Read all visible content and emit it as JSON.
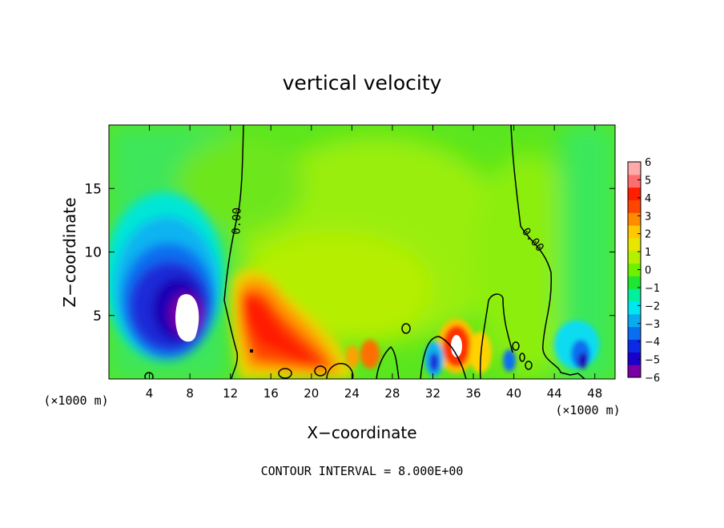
{
  "chart_data": {
    "type": "heatmap",
    "title": "vertical velocity",
    "xlabel": "X−coordinate",
    "ylabel": "Z−coordinate",
    "x_unit_left": "(×1000 m)",
    "x_unit_right": "(×1000 m)",
    "xlim": [
      0,
      50
    ],
    "ylim": [
      0,
      20
    ],
    "x_ticks": [
      4,
      8,
      12,
      16,
      20,
      24,
      28,
      32,
      36,
      40,
      44,
      48
    ],
    "x_tick_labels": [
      "4",
      "8",
      "12",
      "16",
      "20",
      "24",
      "28",
      "32",
      "36",
      "40",
      "44",
      "48"
    ],
    "y_ticks": [
      5,
      10,
      15
    ],
    "y_tick_labels": [
      "5",
      "10",
      "15"
    ],
    "colorbar": {
      "ticks": [
        6,
        5,
        4,
        3,
        2,
        1,
        0,
        -1,
        -2,
        -3,
        -4,
        -5,
        -6
      ],
      "tick_labels": [
        "6",
        "5",
        "4",
        "3",
        "2",
        "1",
        "0",
        "−1",
        "−2",
        "−3",
        "−4",
        "−5",
        "−6"
      ],
      "range": [
        -6,
        6
      ],
      "colors": [
        "#7a00a6",
        "#1a00c8",
        "#0a2ae6",
        "#0a6ef0",
        "#0aaaf0",
        "#00e6f0",
        "#00f0a0",
        "#1ee632",
        "#6ef000",
        "#b4f000",
        "#e6e600",
        "#ffc800",
        "#ff8c00",
        "#ff4600",
        "#ff1e00",
        "#ff6e6e",
        "#ffaaaa"
      ]
    },
    "contour_label": "0.00",
    "contour_interval_text": "CONTOUR INTERVAL = 8.000E+00",
    "features": [
      {
        "kind": "downdraft",
        "x": 7,
        "z": 5.5,
        "min": -6
      },
      {
        "kind": "updraft",
        "x": 18,
        "z": 4.5,
        "max": 4
      },
      {
        "kind": "updraft",
        "x": 34,
        "z": 2.5,
        "max": 6
      },
      {
        "kind": "downdraft",
        "x": 32.5,
        "z": 1.5,
        "min": -4
      },
      {
        "kind": "downdraft",
        "x": 46,
        "z": 2,
        "min": -4
      }
    ]
  }
}
